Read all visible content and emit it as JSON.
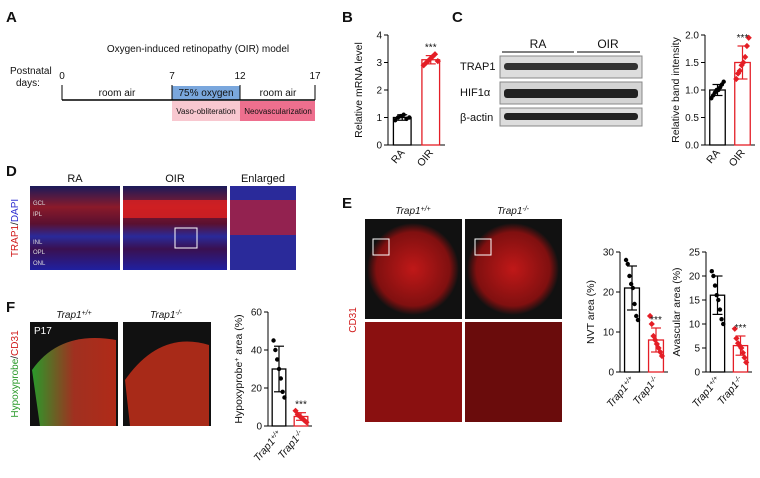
{
  "panel_labels": [
    "A",
    "B",
    "C",
    "D",
    "E",
    "F"
  ],
  "oir_model": {
    "title": "Oxygen-induced retinopathy (OIR) model",
    "days_label": [
      "Postnatal",
      "days:"
    ],
    "days": [
      "0",
      "7",
      "12",
      "17"
    ],
    "phases": [
      "room air",
      "75% oxygen",
      "room air"
    ],
    "outcomes": [
      "Vaso-obliteration",
      "Neovascularization"
    ]
  },
  "blot": {
    "groups": [
      "RA",
      "OIR"
    ],
    "bands": [
      "TRAP1",
      "HIF1α",
      "β-actin"
    ]
  },
  "staining": {
    "columns": [
      "RA",
      "OIR",
      "Enlarged"
    ],
    "stain": [
      "TRAP1",
      "/",
      "DAPI"
    ],
    "layers": [
      "GCL",
      "IPL",
      "INL",
      "OPL",
      "ONL"
    ]
  },
  "vasculature": {
    "columns": [
      {
        "base": "Trap1",
        "sup": "+/+"
      },
      {
        "base": "Trap1",
        "sup": "-/-"
      }
    ],
    "stain": "CD31"
  },
  "hypoxia": {
    "columns": [
      {
        "base": "Trap1",
        "sup": "+/+"
      },
      {
        "base": "Trap1",
        "sup": "-/-"
      }
    ],
    "age": "P17",
    "stain": [
      "Hypoxyprobe",
      "/",
      "CD31"
    ]
  },
  "chart_data": [
    {
      "type": "bar",
      "ylabel": "Relative mRNA level",
      "categories": [
        "RA",
        "OIR"
      ],
      "values": [
        1.0,
        3.1
      ],
      "errors": [
        0.1,
        0.15
      ],
      "points": [
        [
          0.9,
          1.0,
          1.05,
          1.1,
          0.95,
          1.0
        ],
        [
          2.9,
          3.0,
          3.1,
          3.2,
          3.3,
          3.05
        ]
      ],
      "colors": [
        "#000000",
        "#e41e26"
      ],
      "annotation": "***",
      "ylim": [
        0,
        4
      ],
      "yticks": [
        0,
        1,
        2,
        3,
        4
      ]
    },
    {
      "type": "bar",
      "ylabel": "Relative band intensity",
      "categories": [
        "RA",
        "OIR"
      ],
      "values": [
        1.0,
        1.5
      ],
      "errors": [
        0.1,
        0.3
      ],
      "points": [
        [
          0.85,
          0.9,
          0.95,
          1.0,
          1.0,
          1.05,
          1.1,
          1.15
        ],
        [
          1.2,
          1.3,
          1.35,
          1.45,
          1.5,
          1.6,
          1.8,
          1.95
        ]
      ],
      "colors": [
        "#000000",
        "#e41e26"
      ],
      "annotation": "***",
      "ylim": [
        0,
        2
      ],
      "yticks": [
        {
          "value": 0,
          "label": "0.0"
        },
        0.5,
        {
          "value": 1,
          "label": "1.0"
        },
        1.5,
        {
          "value": 2,
          "label": "2.0"
        }
      ]
    },
    {
      "type": "bar",
      "ylabel": "NVT area (%)",
      "categories": [
        {
          "base": "Trap1",
          "sup": "+/+"
        },
        {
          "base": "Trap1",
          "sup": "-/-"
        }
      ],
      "values": [
        21,
        8
      ],
      "errors": [
        5.5,
        3
      ],
      "points": [
        [
          28,
          27,
          24,
          22,
          21,
          17,
          14,
          13
        ],
        [
          14,
          12,
          9,
          8,
          7,
          6,
          5,
          4
        ]
      ],
      "colors": [
        "#000000",
        "#e41e26"
      ],
      "annotation": "***",
      "ylim": [
        0,
        30
      ],
      "yticks": [
        0,
        10,
        20,
        30
      ]
    },
    {
      "type": "bar",
      "ylabel": "Avascular area (%)",
      "categories": [
        {
          "base": "Trap1",
          "sup": "+/+"
        },
        {
          "base": "Trap1",
          "sup": "-/-"
        }
      ],
      "values": [
        16,
        5.5
      ],
      "errors": [
        4,
        2
      ],
      "points": [
        [
          21,
          20,
          18,
          16,
          15,
          13,
          11,
          10
        ],
        [
          9,
          7,
          6,
          5.5,
          5,
          4,
          3,
          2
        ]
      ],
      "colors": [
        "#000000",
        "#e41e26"
      ],
      "annotation": "***",
      "ylim": [
        0,
        25
      ],
      "yticks": [
        0,
        5,
        10,
        15,
        20,
        25
      ]
    },
    {
      "type": "bar",
      "ylabel": {
        "base": "Hypoxyprobe",
        "sup": "+",
        "rest": " area (%)"
      },
      "categories": [
        {
          "base": "Trap1",
          "sup": "+/+"
        },
        {
          "base": "Trap1",
          "sup": "-/-"
        }
      ],
      "values": [
        30,
        5
      ],
      "errors": [
        12,
        2
      ],
      "points": [
        [
          45,
          40,
          35,
          30,
          25,
          18,
          15
        ],
        [
          8,
          6,
          5,
          4,
          3,
          2
        ]
      ],
      "colors": [
        "#000000",
        "#e41e26"
      ],
      "annotation": "***",
      "ylim": [
        0,
        60
      ],
      "yticks": [
        0,
        20,
        40,
        60
      ]
    }
  ]
}
